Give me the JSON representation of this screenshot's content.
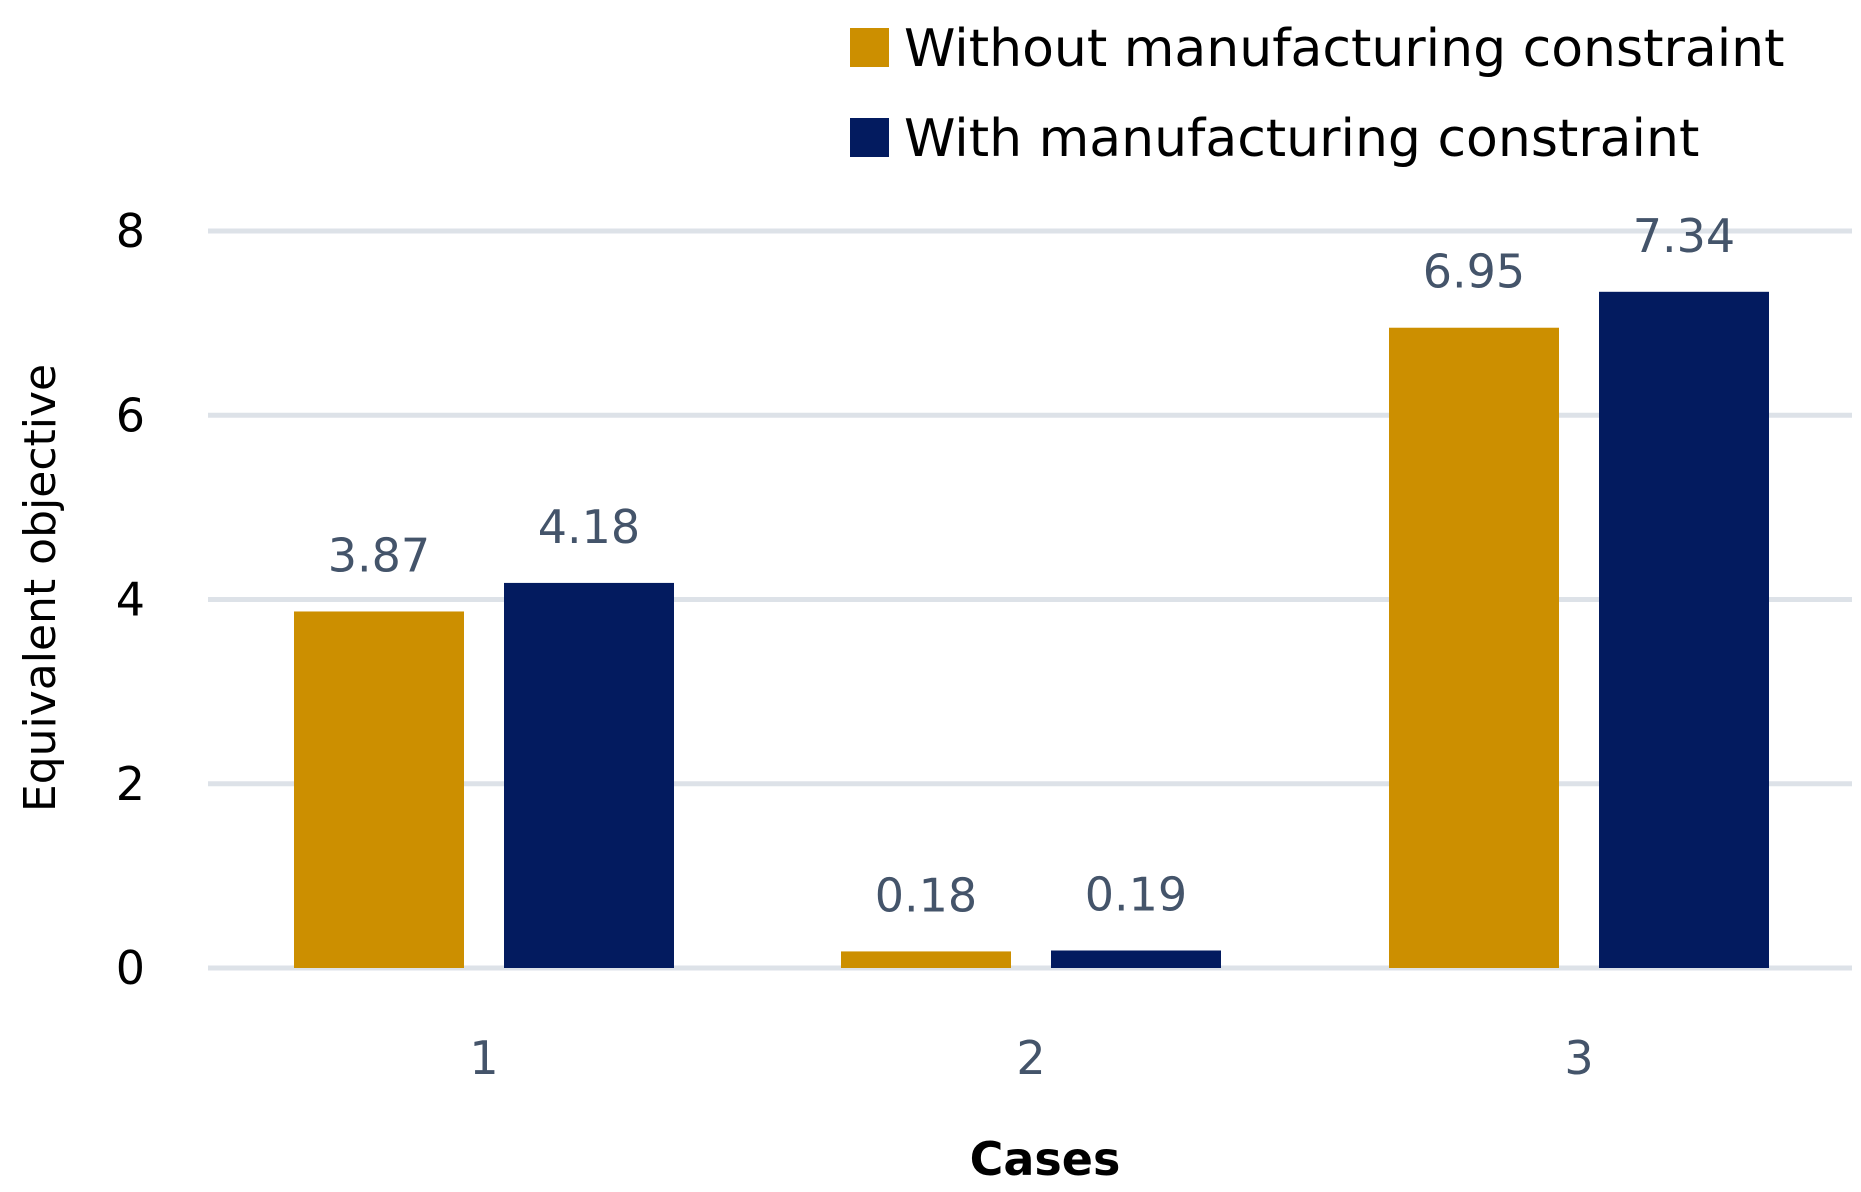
{
  "chart_data": {
    "type": "bar",
    "title": "",
    "xlabel": "Cases",
    "ylabel": "Equivalent objective",
    "categories": [
      "1",
      "2",
      "3"
    ],
    "ylim": [
      0,
      8
    ],
    "yticks": [
      "0",
      "2",
      "4",
      "6",
      "8"
    ],
    "grid": true,
    "legend_position": "top-right",
    "series": [
      {
        "name": "Without manufacturing constraint",
        "color": "#cc8f00",
        "values": [
          3.87,
          0.18,
          6.95
        ],
        "labels": [
          "3.87",
          "0.18",
          "6.95"
        ]
      },
      {
        "name": "With manufacturing constraint",
        "color": "#031b5f",
        "values": [
          4.18,
          0.19,
          7.34
        ],
        "labels": [
          "4.18",
          "0.19",
          "7.34"
        ]
      }
    ]
  }
}
